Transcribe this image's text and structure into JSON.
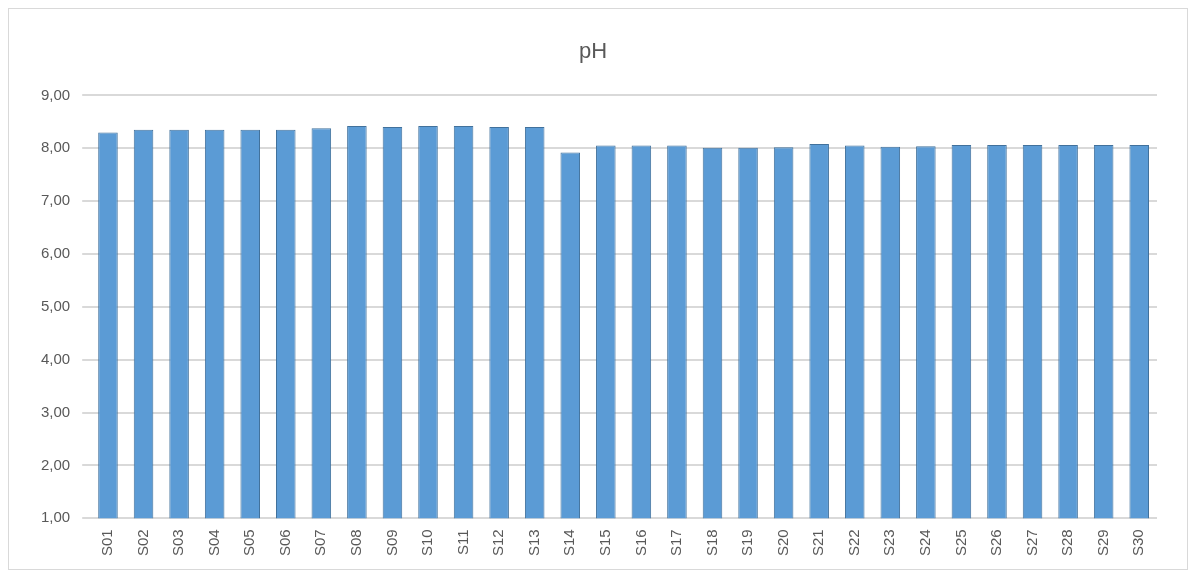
{
  "chart_data": {
    "type": "bar",
    "title": "pH",
    "categories": [
      "S01",
      "S02",
      "S03",
      "S04",
      "S05",
      "S06",
      "S07",
      "S08",
      "S09",
      "S10",
      "S11",
      "S12",
      "S13",
      "S14",
      "S15",
      "S16",
      "S17",
      "S18",
      "S19",
      "S20",
      "S21",
      "S22",
      "S23",
      "S24",
      "S25",
      "S26",
      "S27",
      "S28",
      "S29",
      "S30"
    ],
    "values": [
      8.3,
      8.35,
      8.35,
      8.35,
      8.35,
      8.35,
      8.38,
      8.42,
      8.4,
      8.42,
      8.42,
      8.4,
      8.4,
      7.92,
      8.05,
      8.05,
      8.05,
      8.01,
      8.01,
      8.02,
      8.08,
      8.05,
      8.03,
      8.04,
      8.06,
      8.06,
      8.06,
      8.06,
      8.06,
      8.06
    ],
    "color": "#5b9bd5",
    "ylim": [
      1,
      9
    ],
    "yticks": [
      {
        "value": 1,
        "label": "1,00"
      },
      {
        "value": 2,
        "label": "2,00"
      },
      {
        "value": 3,
        "label": "3,00"
      },
      {
        "value": 4,
        "label": "4,00"
      },
      {
        "value": 5,
        "label": "5,00"
      },
      {
        "value": 6,
        "label": "6,00"
      },
      {
        "value": 7,
        "label": "7,00"
      },
      {
        "value": 8,
        "label": "8,00"
      },
      {
        "value": 9,
        "label": "9,00"
      }
    ],
    "grid": "y"
  }
}
